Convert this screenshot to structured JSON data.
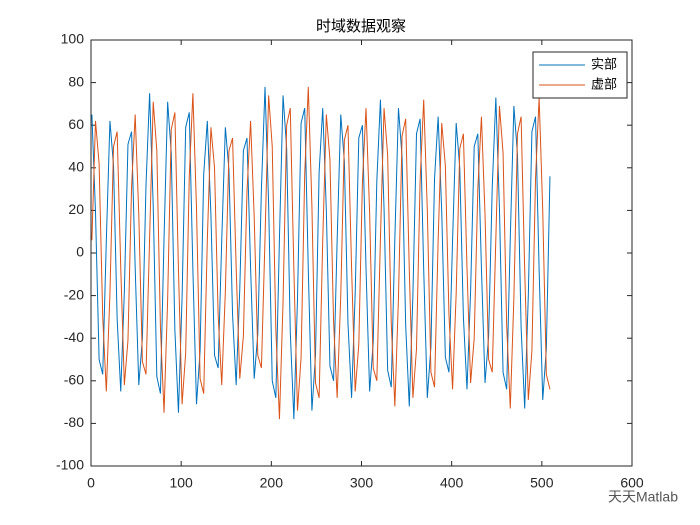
{
  "chart_data": {
    "type": "line",
    "title": "时域数据观察",
    "x": [
      1,
      5,
      9,
      13,
      17,
      21,
      25,
      29,
      33,
      37,
      41,
      45,
      49,
      53,
      57,
      61,
      65,
      69,
      73,
      77,
      81,
      85,
      89,
      93,
      97,
      101,
      105,
      109,
      113,
      117,
      121,
      125,
      129,
      133,
      137,
      141,
      145,
      149,
      153,
      157,
      161,
      165,
      169,
      173,
      177,
      181,
      185,
      189,
      193,
      197,
      201,
      205,
      209,
      213,
      217,
      221,
      225,
      229,
      233,
      237,
      241,
      245,
      249,
      253,
      257,
      261,
      265,
      269,
      273,
      277,
      281,
      285,
      289,
      293,
      297,
      301,
      305,
      309,
      313,
      317,
      321,
      325,
      329,
      333,
      337,
      341,
      345,
      349,
      353,
      357,
      361,
      365,
      369,
      373,
      377,
      381,
      385,
      389,
      393,
      397,
      401,
      405,
      409,
      413,
      417,
      421,
      425,
      429,
      433,
      437,
      441,
      445,
      449,
      453,
      457,
      461,
      465,
      469,
      473,
      477,
      481,
      485,
      489,
      493,
      497,
      501,
      505,
      509
    ],
    "series": [
      {
        "name": "实部",
        "color": "#0072BD",
        "values": [
          65,
          19,
          -50,
          -57,
          6,
          62,
          41,
          -31,
          -65,
          -18,
          51,
          57,
          -7,
          -62,
          -40,
          32,
          75,
          22,
          -58,
          -66,
          7,
          71,
          47,
          -36,
          -75,
          -21,
          59,
          66,
          -8,
          -71,
          -46,
          37,
          62,
          18,
          -48,
          -54,
          6,
          59,
          39,
          -29,
          -62,
          -17,
          48,
          54,
          -7,
          -59,
          -38,
          30,
          78,
          23,
          -60,
          -68,
          7,
          74,
          49,
          -37,
          -78,
          -22,
          61,
          68,
          -8,
          -74,
          -48,
          38,
          68,
          20,
          -53,
          -60,
          6,
          65,
          43,
          -33,
          -68,
          -19,
          54,
          60,
          -7,
          -65,
          -42,
          34,
          72,
          21,
          -55,
          -63,
          7,
          68,
          45,
          -34,
          -72,
          -20,
          56,
          63,
          -8,
          -68,
          -44,
          35,
          64,
          19,
          -49,
          -56,
          6,
          61,
          40,
          -30,
          -64,
          -18,
          50,
          56,
          -7,
          -61,
          -39,
          31,
          73,
          21,
          -56,
          -64,
          7,
          69,
          46,
          -35,
          -73,
          -20,
          57,
          64,
          -8,
          -69,
          -45,
          36
        ]
      },
      {
        "name": "虚部",
        "color": "#D95319",
        "values": [
          6,
          62,
          42,
          -30,
          -65,
          -19,
          50,
          57,
          -7,
          -62,
          -41,
          31,
          65,
          18,
          -51,
          -57,
          7,
          71,
          48,
          -35,
          -75,
          -22,
          58,
          66,
          -8,
          -71,
          -47,
          36,
          75,
          21,
          -59,
          -66,
          6,
          59,
          40,
          -29,
          -62,
          -18,
          48,
          54,
          -7,
          -59,
          -39,
          29,
          62,
          17,
          -48,
          -54,
          7,
          74,
          50,
          -36,
          -78,
          -23,
          60,
          68,
          -8,
          -74,
          -49,
          37,
          78,
          22,
          -61,
          -68,
          6,
          65,
          44,
          -32,
          -68,
          -20,
          53,
          60,
          -7,
          -65,
          -43,
          33,
          68,
          19,
          -54,
          -60,
          7,
          68,
          46,
          -33,
          -72,
          -21,
          55,
          63,
          -8,
          -68,
          -45,
          34,
          72,
          20,
          -56,
          -63,
          6,
          61,
          41,
          -29,
          -64,
          -19,
          49,
          56,
          -7,
          -61,
          -40,
          30,
          64,
          18,
          -50,
          -56,
          7,
          69,
          47,
          -34,
          -73,
          -21,
          56,
          64,
          -8,
          -69,
          -46,
          35,
          73,
          20,
          -57,
          -64
        ]
      }
    ],
    "xlim": [
      0,
      600
    ],
    "xticks": [
      0,
      100,
      200,
      300,
      400,
      500,
      600
    ],
    "ylim": [
      -100,
      100
    ],
    "yticks": [
      -100,
      -80,
      -60,
      -40,
      -20,
      0,
      20,
      40,
      60,
      80,
      100
    ],
    "legend": "upper right",
    "grid": false
  },
  "watermark": "天天Matlab"
}
